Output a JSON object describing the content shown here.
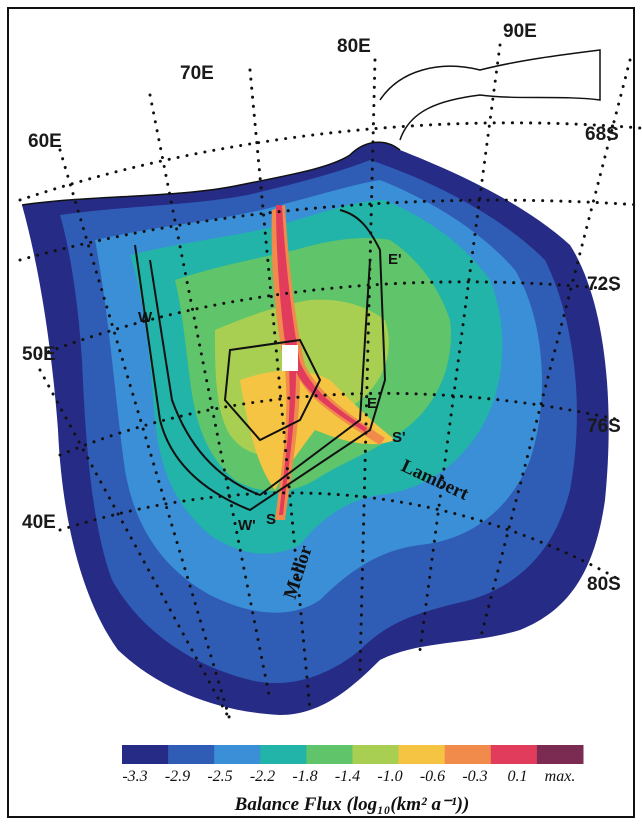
{
  "grid_labels": {
    "lon": [
      "60E",
      "70E",
      "80E",
      "90E",
      "50E",
      "40E"
    ],
    "lat": [
      "68S",
      "72S",
      "76S",
      "80S"
    ]
  },
  "features": [
    "Lambert",
    "Mellor"
  ],
  "markers": [
    "W",
    "W'",
    "E",
    "E'",
    "S",
    "S'"
  ],
  "legend": {
    "colors": [
      "#262b86",
      "#2f5cb5",
      "#3a8fd6",
      "#22b4a8",
      "#5fc46a",
      "#a9cf52",
      "#f6c443",
      "#f08b4c",
      "#e23c5c",
      "#7b2a52"
    ],
    "tick_labels": [
      "-3.3",
      "-2.9",
      "-2.5",
      "-2.2",
      "-1.8",
      "-1.4",
      "-1.0",
      "-0.6",
      "-0.3",
      "0.1",
      "max."
    ],
    "title": "Balance Flux (log₁₀(km² a⁻¹))"
  }
}
